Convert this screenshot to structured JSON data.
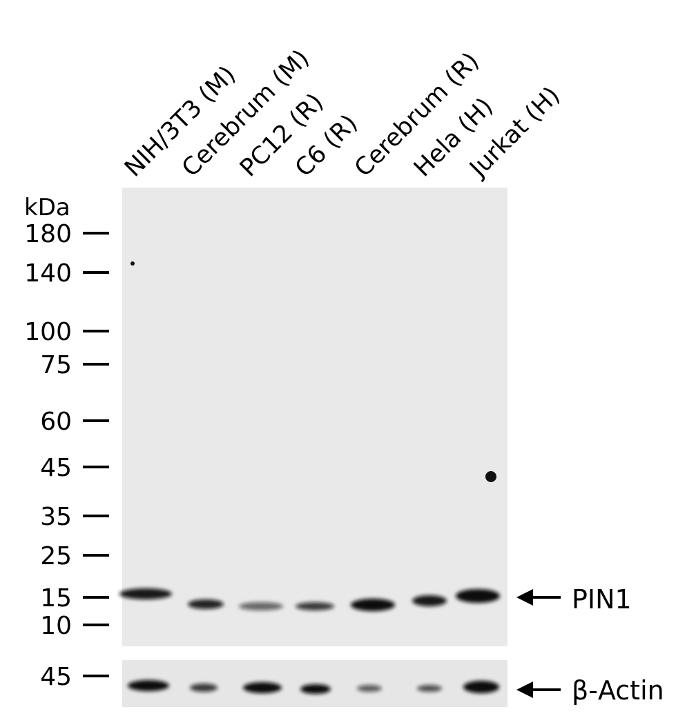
{
  "lanes": [
    "NIH/3T3 (M)",
    "Cerebrum (M)",
    "PC12 (R)",
    "C6 (R)",
    "Cerebrum (R)",
    "Hela (H)",
    "Jurkat (H)"
  ],
  "unit": "kDa",
  "markers": [
    180,
    140,
    100,
    75,
    60,
    45,
    35,
    25,
    15,
    10
  ],
  "actin_markers": [
    45
  ],
  "targets": [
    "PIN1",
    "β-Actin"
  ]
}
